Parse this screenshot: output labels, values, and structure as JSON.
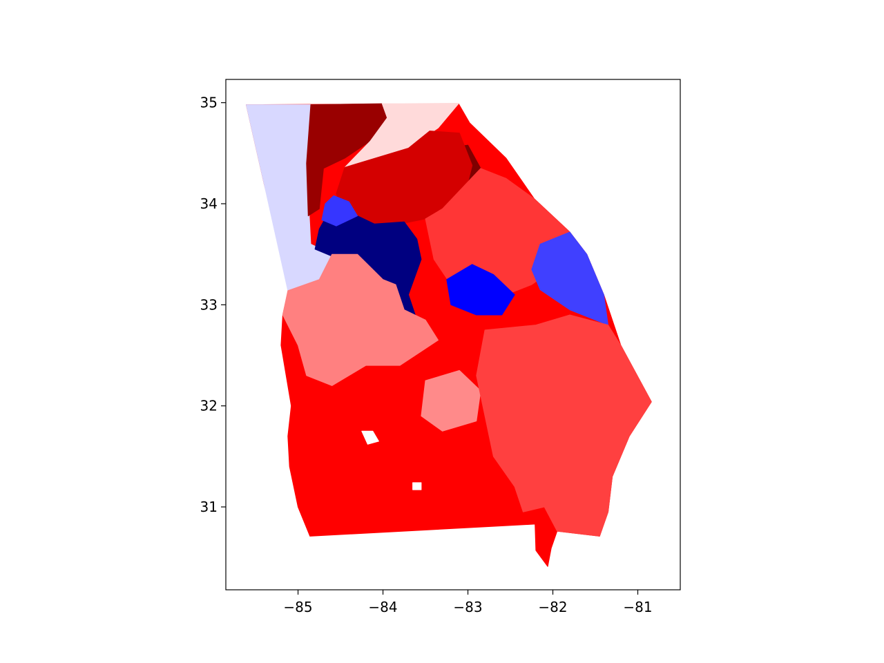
{
  "chart_data": {
    "type": "choropleth",
    "title": "",
    "xlabel": "",
    "ylabel": "",
    "xlim": [
      -85.85,
      -80.5
    ],
    "ylim": [
      30.18,
      35.23
    ],
    "x_ticks": [
      -85,
      -84,
      -83,
      -82,
      -81
    ],
    "y_ticks": [
      31,
      32,
      33,
      34,
      35
    ],
    "x_tick_labels": [
      "−85",
      "−84",
      "−83",
      "−82",
      "−81"
    ],
    "y_tick_labels": [
      "31",
      "32",
      "33",
      "34",
      "35"
    ],
    "grid": false,
    "legend": "none",
    "colormap": "diverging blue-white-red (seismic)",
    "regions": [
      {
        "id": "georgia-land",
        "color": "#ff0000",
        "points": [
          [
            -85.61,
            34.98
          ],
          [
            -83.11,
            34.99
          ],
          [
            -82.98,
            34.8
          ],
          [
            -82.55,
            34.45
          ],
          [
            -82.22,
            34.05
          ],
          [
            -81.8,
            33.72
          ],
          [
            -81.6,
            33.5
          ],
          [
            -81.4,
            33.1
          ],
          [
            -81.2,
            32.6
          ],
          [
            -80.84,
            32.04
          ],
          [
            -81.1,
            31.7
          ],
          [
            -81.3,
            31.3
          ],
          [
            -81.35,
            30.95
          ],
          [
            -81.45,
            30.71
          ],
          [
            -81.65,
            30.73
          ],
          [
            -81.95,
            30.76
          ],
          [
            -82.02,
            30.59
          ],
          [
            -82.06,
            30.41
          ],
          [
            -82.2,
            30.57
          ],
          [
            -82.21,
            30.83
          ],
          [
            -84.86,
            30.71
          ],
          [
            -85.0,
            31.0
          ],
          [
            -85.1,
            31.4
          ],
          [
            -85.12,
            31.7
          ],
          [
            -85.08,
            32.0
          ],
          [
            -85.2,
            32.6
          ],
          [
            -85.18,
            32.9
          ],
          [
            -85.1,
            33.2
          ],
          [
            -85.4,
            34.2
          ],
          [
            -85.61,
            34.98
          ]
        ]
      },
      {
        "id": "northwest-district",
        "color": "#d8d8ff",
        "points": [
          [
            -85.61,
            34.98
          ],
          [
            -84.85,
            34.98
          ],
          [
            -84.9,
            34.4
          ],
          [
            -84.85,
            33.6
          ],
          [
            -84.6,
            33.5
          ],
          [
            -84.75,
            33.25
          ],
          [
            -85.12,
            33.14
          ],
          [
            -85.4,
            34.2
          ],
          [
            -85.61,
            34.98
          ]
        ]
      },
      {
        "id": "north-georgia-district",
        "color": "#990000",
        "points": [
          [
            -84.85,
            34.98
          ],
          [
            -84.01,
            34.99
          ],
          [
            -83.95,
            34.85
          ],
          [
            -84.15,
            34.62
          ],
          [
            -84.45,
            34.45
          ],
          [
            -84.7,
            34.35
          ],
          [
            -84.75,
            33.95
          ],
          [
            -84.88,
            33.88
          ],
          [
            -84.9,
            34.4
          ],
          [
            -84.85,
            34.98
          ]
        ]
      },
      {
        "id": "mountain-district",
        "color": "#ffdada",
        "points": [
          [
            -84.01,
            34.99
          ],
          [
            -83.11,
            34.99
          ],
          [
            -83.35,
            34.75
          ],
          [
            -83.7,
            34.55
          ],
          [
            -84.05,
            34.4
          ],
          [
            -84.45,
            34.36
          ],
          [
            -84.15,
            34.62
          ],
          [
            -83.95,
            34.85
          ],
          [
            -84.01,
            34.99
          ]
        ]
      },
      {
        "id": "northeast-district",
        "color": "#800000",
        "points": [
          [
            -83.55,
            34.45
          ],
          [
            -83.25,
            34.55
          ],
          [
            -83.0,
            34.58
          ],
          [
            -82.85,
            34.35
          ],
          [
            -83.05,
            34.05
          ],
          [
            -83.3,
            33.95
          ],
          [
            -83.55,
            34.1
          ],
          [
            -83.55,
            34.45
          ]
        ]
      },
      {
        "id": "north-metro-district",
        "color": "#d40000",
        "points": [
          [
            -84.45,
            34.36
          ],
          [
            -83.7,
            34.55
          ],
          [
            -83.45,
            34.72
          ],
          [
            -83.1,
            34.7
          ],
          [
            -82.95,
            34.38
          ],
          [
            -83.05,
            34.05
          ],
          [
            -83.3,
            33.95
          ],
          [
            -83.5,
            33.85
          ],
          [
            -83.8,
            33.8
          ],
          [
            -84.2,
            33.7
          ],
          [
            -84.45,
            33.85
          ],
          [
            -84.55,
            34.1
          ],
          [
            -84.45,
            34.36
          ]
        ]
      },
      {
        "id": "east-central-district",
        "color": "#ff3636",
        "points": [
          [
            -83.3,
            33.95
          ],
          [
            -82.85,
            34.35
          ],
          [
            -82.55,
            34.25
          ],
          [
            -82.22,
            34.05
          ],
          [
            -81.8,
            33.72
          ],
          [
            -81.9,
            33.4
          ],
          [
            -82.25,
            33.2
          ],
          [
            -82.55,
            33.1
          ],
          [
            -82.9,
            33.0
          ],
          [
            -83.2,
            33.2
          ],
          [
            -83.4,
            33.45
          ],
          [
            -83.5,
            33.85
          ],
          [
            -83.3,
            33.95
          ]
        ]
      },
      {
        "id": "atlanta-metro-district",
        "color": "#000080",
        "points": [
          [
            -84.65,
            33.9
          ],
          [
            -84.4,
            33.92
          ],
          [
            -84.1,
            33.8
          ],
          [
            -83.75,
            33.82
          ],
          [
            -83.6,
            33.65
          ],
          [
            -83.55,
            33.45
          ],
          [
            -83.7,
            33.1
          ],
          [
            -83.6,
            32.85
          ],
          [
            -83.7,
            32.75
          ],
          [
            -83.9,
            32.9
          ],
          [
            -83.85,
            33.2
          ],
          [
            -84.0,
            33.25
          ],
          [
            -84.3,
            33.5
          ],
          [
            -84.6,
            33.48
          ],
          [
            -84.8,
            33.55
          ],
          [
            -84.75,
            33.75
          ],
          [
            -84.65,
            33.9
          ]
        ]
      },
      {
        "id": "cobb-district",
        "color": "#3636ff",
        "points": [
          [
            -84.58,
            34.08
          ],
          [
            -84.4,
            34.02
          ],
          [
            -84.3,
            33.88
          ],
          [
            -84.55,
            33.78
          ],
          [
            -84.72,
            33.84
          ],
          [
            -84.68,
            34.0
          ],
          [
            -84.58,
            34.08
          ]
        ]
      },
      {
        "id": "southwest-metro-district",
        "color": "#ff8080",
        "points": [
          [
            -85.12,
            33.14
          ],
          [
            -84.75,
            33.25
          ],
          [
            -84.6,
            33.5
          ],
          [
            -84.3,
            33.5
          ],
          [
            -84.0,
            33.25
          ],
          [
            -83.85,
            33.2
          ],
          [
            -83.75,
            32.95
          ],
          [
            -83.5,
            32.85
          ],
          [
            -83.35,
            32.65
          ],
          [
            -83.8,
            32.4
          ],
          [
            -84.2,
            32.4
          ],
          [
            -84.6,
            32.2
          ],
          [
            -84.9,
            32.3
          ],
          [
            -85.0,
            32.6
          ],
          [
            -85.18,
            32.9
          ],
          [
            -85.12,
            33.14
          ]
        ]
      },
      {
        "id": "central-district",
        "color": "#0000ff",
        "points": [
          [
            -83.25,
            33.25
          ],
          [
            -82.95,
            33.4
          ],
          [
            -82.7,
            33.3
          ],
          [
            -82.45,
            33.1
          ],
          [
            -82.6,
            32.9
          ],
          [
            -82.9,
            32.9
          ],
          [
            -83.2,
            33.0
          ],
          [
            -83.25,
            33.25
          ]
        ]
      },
      {
        "id": "augusta-district",
        "color": "#4040ff",
        "points": [
          [
            -82.15,
            33.6
          ],
          [
            -81.8,
            33.72
          ],
          [
            -81.6,
            33.5
          ],
          [
            -81.4,
            33.1
          ],
          [
            -81.35,
            32.8
          ],
          [
            -81.8,
            32.95
          ],
          [
            -82.15,
            33.15
          ],
          [
            -82.25,
            33.35
          ],
          [
            -82.15,
            33.6
          ]
        ]
      },
      {
        "id": "macon-district",
        "color": "#ff8a8a",
        "points": [
          [
            -83.5,
            32.25
          ],
          [
            -83.1,
            32.35
          ],
          [
            -82.85,
            32.15
          ],
          [
            -82.9,
            31.85
          ],
          [
            -83.3,
            31.75
          ],
          [
            -83.55,
            31.9
          ],
          [
            -83.5,
            32.25
          ]
        ]
      },
      {
        "id": "coastal-district",
        "color": "#ff4040",
        "points": [
          [
            -82.8,
            32.75
          ],
          [
            -82.2,
            32.8
          ],
          [
            -81.8,
            32.9
          ],
          [
            -81.35,
            32.8
          ],
          [
            -81.2,
            32.6
          ],
          [
            -80.84,
            32.04
          ],
          [
            -81.1,
            31.7
          ],
          [
            -81.3,
            31.3
          ],
          [
            -81.35,
            30.95
          ],
          [
            -81.45,
            30.71
          ],
          [
            -81.65,
            30.73
          ],
          [
            -81.95,
            30.76
          ],
          [
            -82.1,
            31.0
          ],
          [
            -82.35,
            30.95
          ],
          [
            -82.45,
            31.2
          ],
          [
            -82.7,
            31.5
          ],
          [
            -82.8,
            31.9
          ],
          [
            -82.9,
            32.3
          ],
          [
            -82.8,
            32.75
          ]
        ]
      },
      {
        "id": "hole-west",
        "color": "#ffffff",
        "points": [
          [
            -84.25,
            31.75
          ],
          [
            -84.12,
            31.75
          ],
          [
            -84.05,
            31.65
          ],
          [
            -84.18,
            31.62
          ],
          [
            -84.25,
            31.75
          ]
        ]
      },
      {
        "id": "hole-south",
        "color": "#ffffff",
        "points": [
          [
            -83.65,
            31.24
          ],
          [
            -83.55,
            31.24
          ],
          [
            -83.55,
            31.17
          ],
          [
            -83.65,
            31.17
          ],
          [
            -83.65,
            31.24
          ]
        ]
      }
    ]
  }
}
